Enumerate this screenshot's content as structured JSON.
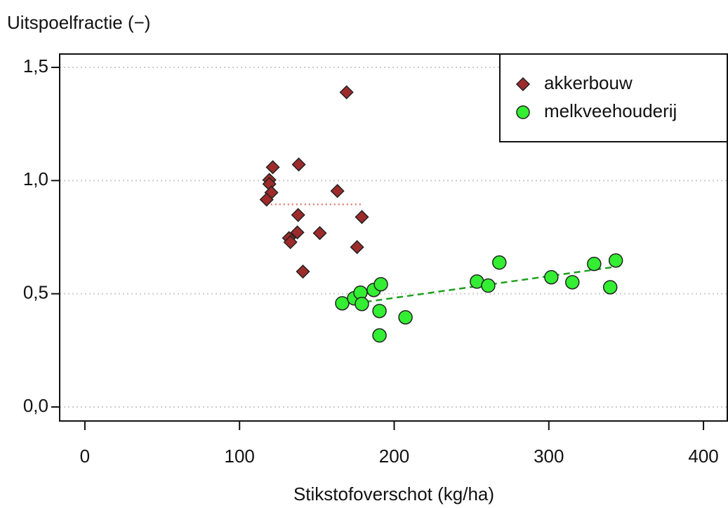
{
  "chart_data": {
    "type": "scatter",
    "title": "Uitspoelfractie (−)",
    "x_label": "Stikstofoverschot (kg/ha)",
    "xlim": [
      -16.3,
      415.4
    ],
    "ylim": [
      -0.062,
      1.559
    ],
    "xticks": [
      0,
      100,
      200,
      300,
      400
    ],
    "yticks": [
      {
        "value": 0,
        "label": "0,0"
      },
      {
        "value": 0.5,
        "label": "0,5"
      },
      {
        "value": 1.0,
        "label": "1,0"
      },
      {
        "value": 1.5,
        "label": "1,5"
      }
    ],
    "grid": true,
    "legend": "top-right",
    "series": [
      {
        "name": "akkerbouw",
        "color": "#9e2b2b",
        "marker": "diamond",
        "x": [
          121.5,
          119.3,
          119.3,
          120.6,
          117.5,
          138.3,
          163.3,
          169.2,
          137.9,
          179.1,
          137.4,
          132.0,
          132.9,
          151.9,
          176.0,
          141.0
        ],
        "values": [
          1.059,
          1.003,
          0.985,
          0.947,
          0.916,
          1.071,
          0.954,
          1.39,
          0.848,
          0.839,
          0.771,
          0.746,
          0.728,
          0.768,
          0.706,
          0.598
        ],
        "fit": {
          "color": "#d9826f",
          "style": "dotted",
          "x": [
            117.5,
            179.1
          ],
          "values": [
            0.895,
            0.895
          ]
        }
      },
      {
        "name": "melkveehouderij",
        "color": "#33ee33",
        "marker": "circle",
        "x": [
          166.4,
          174.1,
          178.2,
          179.1,
          186.8,
          191.4,
          190.5,
          190.5,
          207.3,
          253.5,
          260.8,
          268.0,
          301.6,
          315.2,
          329.3,
          339.7,
          343.3
        ],
        "values": [
          0.458,
          0.48,
          0.505,
          0.455,
          0.517,
          0.542,
          0.424,
          0.316,
          0.396,
          0.554,
          0.536,
          0.638,
          0.573,
          0.551,
          0.632,
          0.529,
          0.647
        ],
        "fit": {
          "color": "#1ea01e",
          "style": "dashed",
          "x": [
            181.4,
            346.0
          ],
          "values": [
            0.464,
            0.622
          ]
        }
      }
    ]
  }
}
